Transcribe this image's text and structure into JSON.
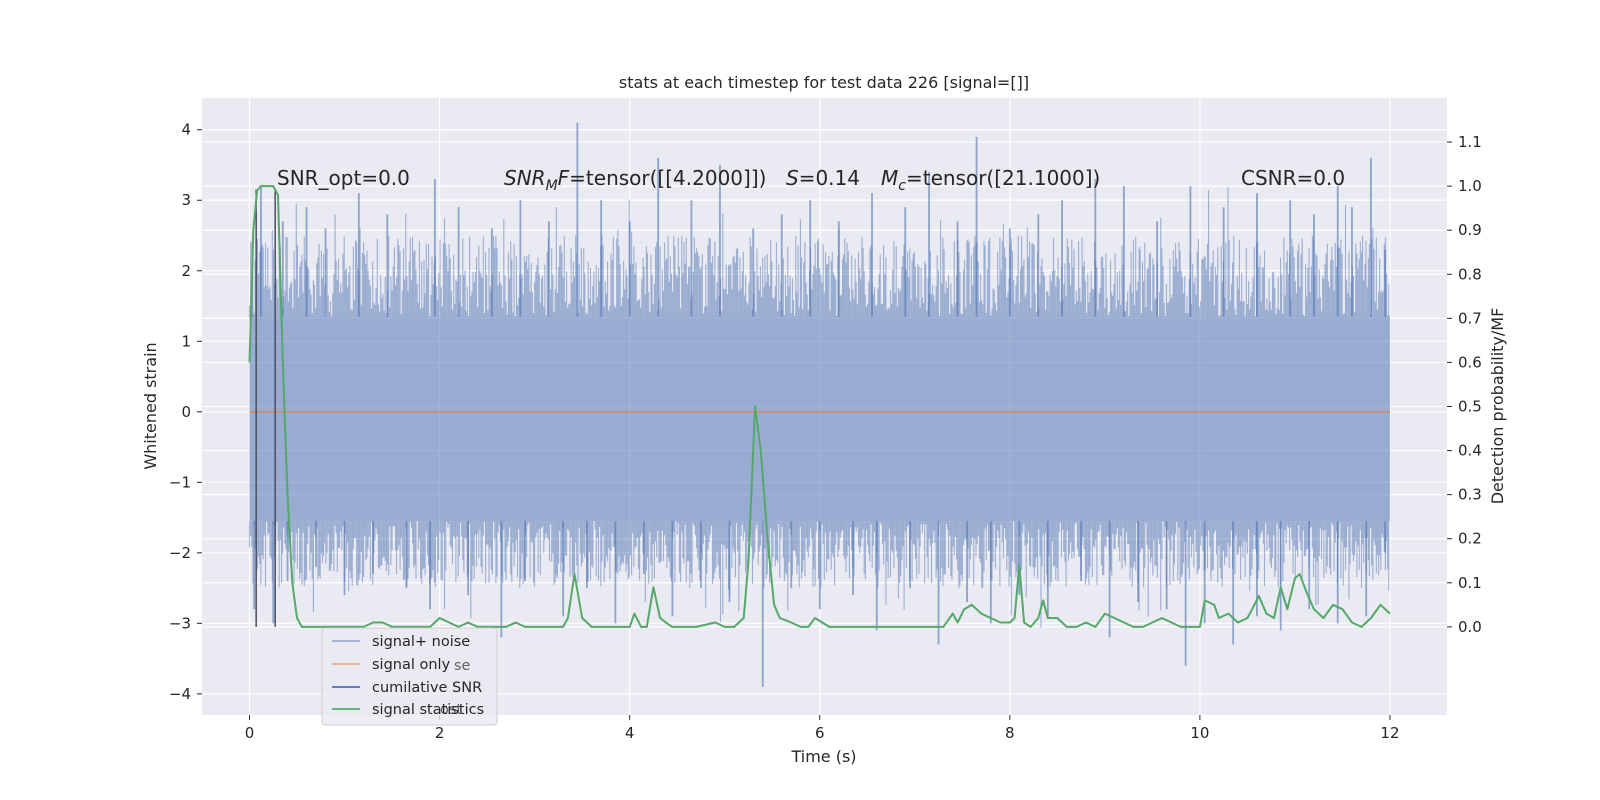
{
  "chart_data": {
    "type": "line",
    "title": "stats at each timestep for test data 226 [signal=[]]",
    "xlabel": "Time (s)",
    "ylabel": "Whitened strain",
    "y2label": "Detection probability/MF",
    "xlim": [
      -0.5,
      12.6
    ],
    "ylim": [
      -4.3,
      4.45
    ],
    "y2lim": [
      -0.2,
      1.2
    ],
    "xticks": [
      "0",
      "2",
      "4",
      "6",
      "8",
      "10",
      "12"
    ],
    "yticks": [
      "4",
      "3",
      "2",
      "1",
      "0",
      "−1",
      "−2",
      "−3",
      "−4"
    ],
    "y2ticks": [
      "1.1",
      "1.0",
      "0.9",
      "0.8",
      "0.7",
      "0.6",
      "0.5",
      "0.4",
      "0.3",
      "0.2",
      "0.1",
      "0.0"
    ],
    "annotations": {
      "snr_opt": "SNR_opt=0.0",
      "snr_mf_sym": "SNR",
      "snr_mf_sub": "M",
      "snr_mf_f": "F",
      "snr_mf_val": "=tensor([[4.2000]])",
      "s_sym": "S",
      "s_val": "=0.14",
      "mc_sym": "M",
      "mc_sub": "c",
      "mc_val": "=tensor([21.1000])",
      "csnr": "CSNR=0.0"
    },
    "legend": [
      "signal+ noise",
      "signal only",
      "cumilative SNR",
      "signal statistics"
    ],
    "legend_ghost": [
      "se",
      "ost"
    ],
    "series": [
      {
        "name": "signal+ noise",
        "color": "#4c72b0",
        "x_start": 0.0,
        "x_end": 12.0,
        "envelope_hi": 1.35,
        "envelope_lo": -1.55,
        "spikes_up": [
          [
            0.03,
            2.4
          ],
          [
            0.12,
            3.2
          ],
          [
            0.35,
            2.7
          ],
          [
            0.6,
            2.9
          ],
          [
            0.8,
            2.6
          ],
          [
            1.15,
            3.1
          ],
          [
            1.45,
            2.8
          ],
          [
            1.95,
            3.3
          ],
          [
            2.2,
            2.9
          ],
          [
            2.55,
            2.6
          ],
          [
            2.85,
            3.0
          ],
          [
            3.15,
            2.7
          ],
          [
            3.45,
            4.1
          ],
          [
            3.7,
            3.0
          ],
          [
            4.0,
            2.7
          ],
          [
            4.3,
            3.6
          ],
          [
            4.65,
            3.0
          ],
          [
            4.95,
            3.5
          ],
          [
            5.3,
            2.6
          ],
          [
            5.6,
            2.8
          ],
          [
            5.9,
            3.0
          ],
          [
            6.2,
            2.7
          ],
          [
            6.55,
            3.1
          ],
          [
            6.9,
            2.9
          ],
          [
            7.15,
            3.4
          ],
          [
            7.45,
            2.7
          ],
          [
            7.65,
            3.9
          ],
          [
            8.0,
            2.6
          ],
          [
            8.3,
            2.8
          ],
          [
            8.55,
            3.0
          ],
          [
            8.9,
            3.3
          ],
          [
            9.2,
            3.2
          ],
          [
            9.55,
            2.7
          ],
          [
            9.9,
            3.2
          ],
          [
            10.25,
            2.9
          ],
          [
            10.6,
            3.1
          ],
          [
            10.95,
            3.0
          ],
          [
            11.2,
            2.8
          ],
          [
            11.45,
            3.2
          ],
          [
            11.6,
            2.9
          ],
          [
            11.8,
            3.6
          ],
          [
            11.95,
            2.3
          ]
        ],
        "spikes_down": [
          [
            0.05,
            -2.8
          ],
          [
            0.25,
            -3.0
          ],
          [
            0.4,
            -2.4
          ],
          [
            0.7,
            -2.2
          ],
          [
            1.0,
            -2.6
          ],
          [
            1.3,
            -2.3
          ],
          [
            1.65,
            -2.5
          ],
          [
            1.9,
            -2.8
          ],
          [
            2.3,
            -2.6
          ],
          [
            2.65,
            -3.2
          ],
          [
            2.9,
            -2.4
          ],
          [
            3.3,
            -2.9
          ],
          [
            3.55,
            -2.5
          ],
          [
            3.85,
            -3.0
          ],
          [
            4.15,
            -2.3
          ],
          [
            4.45,
            -2.9
          ],
          [
            4.75,
            -2.5
          ],
          [
            5.05,
            -2.7
          ],
          [
            5.4,
            -3.9
          ],
          [
            5.7,
            -2.5
          ],
          [
            6.0,
            -2.8
          ],
          [
            6.35,
            -2.6
          ],
          [
            6.6,
            -3.1
          ],
          [
            6.95,
            -2.5
          ],
          [
            7.25,
            -3.3
          ],
          [
            7.55,
            -2.7
          ],
          [
            7.8,
            -3.0
          ],
          [
            8.1,
            -2.6
          ],
          [
            8.4,
            -2.9
          ],
          [
            8.75,
            -2.4
          ],
          [
            9.05,
            -3.2
          ],
          [
            9.35,
            -2.7
          ],
          [
            9.65,
            -2.8
          ],
          [
            9.85,
            -3.6
          ],
          [
            10.05,
            -3.0
          ],
          [
            10.35,
            -3.3
          ],
          [
            10.6,
            -2.9
          ],
          [
            10.85,
            -3.1
          ],
          [
            11.15,
            -2.8
          ],
          [
            11.45,
            -3.0
          ],
          [
            11.75,
            -2.9
          ],
          [
            11.95,
            -2.0
          ]
        ]
      },
      {
        "name": "signal only",
        "color": "#dd8452",
        "x": [
          0,
          12
        ],
        "y": [
          0,
          0
        ]
      },
      {
        "name": "cumilative SNR",
        "color": "#4c4c5e",
        "vlines_x": [
          0.07,
          0.27
        ],
        "vlines_y": [
          -3.05,
          3.15
        ]
      },
      {
        "name": "signal statistics",
        "color": "#55a868",
        "axis": "y2",
        "x": [
          0.0,
          0.04,
          0.08,
          0.12,
          0.18,
          0.25,
          0.3,
          0.35,
          0.4,
          0.45,
          0.5,
          0.55,
          0.6,
          0.7,
          0.9,
          1.0,
          1.1,
          1.2,
          1.3,
          1.4,
          1.5,
          1.6,
          1.7,
          1.8,
          1.9,
          2.0,
          2.1,
          2.2,
          2.3,
          2.4,
          2.5,
          2.6,
          2.7,
          2.8,
          2.9,
          3.0,
          3.1,
          3.2,
          3.3,
          3.35,
          3.42,
          3.5,
          3.6,
          3.7,
          3.8,
          3.9,
          4.0,
          4.05,
          4.12,
          4.18,
          4.25,
          4.32,
          4.38,
          4.45,
          4.55,
          4.7,
          4.9,
          5.0,
          5.1,
          5.2,
          5.25,
          5.32,
          5.38,
          5.45,
          5.52,
          5.58,
          5.7,
          5.8,
          5.88,
          5.95,
          6.1,
          6.3,
          6.5,
          6.7,
          6.9,
          7.0,
          7.1,
          7.2,
          7.3,
          7.4,
          7.45,
          7.52,
          7.6,
          7.7,
          7.8,
          7.9,
          8.0,
          8.05,
          8.1,
          8.15,
          8.22,
          8.3,
          8.35,
          8.4,
          8.5,
          8.6,
          8.7,
          8.8,
          8.9,
          9.0,
          9.1,
          9.2,
          9.3,
          9.4,
          9.5,
          9.6,
          9.7,
          9.8,
          9.9,
          10.0,
          10.05,
          10.15,
          10.2,
          10.3,
          10.4,
          10.5,
          10.55,
          10.62,
          10.7,
          10.78,
          10.85,
          10.92,
          11.0,
          11.05,
          11.12,
          11.2,
          11.3,
          11.4,
          11.5,
          11.6,
          11.7,
          11.8,
          11.9,
          12.0
        ],
        "y": [
          0.6,
          0.9,
          0.99,
          1.0,
          1.0,
          1.0,
          0.98,
          0.6,
          0.3,
          0.1,
          0.02,
          0.0,
          0.0,
          0.0,
          0.0,
          0.0,
          0.0,
          0.0,
          0.01,
          0.01,
          0.0,
          0.0,
          0.0,
          0.0,
          0.0,
          0.02,
          0.01,
          0.0,
          0.01,
          0.0,
          0.0,
          0.0,
          0.0,
          0.01,
          0.0,
          0.0,
          0.0,
          0.0,
          0.0,
          0.02,
          0.12,
          0.02,
          0.0,
          0.0,
          0.0,
          0.0,
          0.0,
          0.03,
          0.0,
          0.0,
          0.09,
          0.02,
          0.01,
          0.0,
          0.0,
          0.0,
          0.01,
          0.0,
          0.0,
          0.02,
          0.15,
          0.5,
          0.4,
          0.2,
          0.05,
          0.02,
          0.01,
          0.0,
          0.0,
          0.02,
          0.0,
          0.0,
          0.0,
          0.0,
          0.0,
          0.0,
          0.0,
          0.0,
          0.0,
          0.03,
          0.01,
          0.04,
          0.05,
          0.03,
          0.02,
          0.01,
          0.01,
          0.02,
          0.14,
          0.01,
          0.0,
          0.02,
          0.06,
          0.02,
          0.02,
          0.0,
          0.0,
          0.01,
          0.0,
          0.03,
          0.02,
          0.01,
          0.0,
          0.0,
          0.01,
          0.02,
          0.01,
          0.0,
          0.0,
          0.0,
          0.06,
          0.05,
          0.02,
          0.03,
          0.01,
          0.02,
          0.04,
          0.07,
          0.03,
          0.02,
          0.09,
          0.04,
          0.11,
          0.12,
          0.08,
          0.04,
          0.02,
          0.05,
          0.04,
          0.01,
          0.0,
          0.02,
          0.05,
          0.03
        ]
      }
    ]
  }
}
